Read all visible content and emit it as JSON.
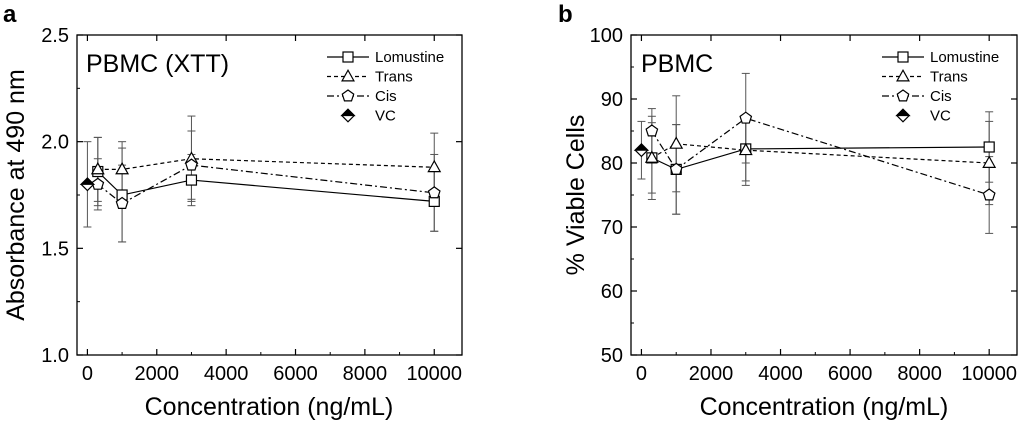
{
  "chart_data": [
    {
      "type": "line",
      "panel_label": "a",
      "title": "PBMC (XTT)",
      "xlabel": "Concentration (ng/mL)",
      "ylabel": "Absorbance at 490 nm",
      "xlim": [
        -300,
        10800
      ],
      "ylim": [
        1.0,
        2.5
      ],
      "xticks": [
        0,
        2000,
        4000,
        6000,
        8000,
        10000
      ],
      "xtick_labels": [
        "0",
        "2000",
        "4000",
        "6000",
        "8000",
        "10000"
      ],
      "yticks": [
        1.0,
        1.5,
        2.0,
        2.5
      ],
      "ytick_labels": [
        "1.0",
        "1.5",
        "2.0",
        "2.5"
      ],
      "legend_position": "top-right",
      "series": [
        {
          "name": "Lomustine",
          "line": "solid",
          "marker": "square",
          "x": [
            300,
            1000,
            3000,
            10000
          ],
          "y": [
            1.86,
            1.75,
            1.82,
            1.72
          ],
          "err": [
            0.16,
            0.22,
            0.12,
            0.14
          ]
        },
        {
          "name": "Trans",
          "line": "dashed",
          "marker": "triangle",
          "x": [
            300,
            1000,
            3000,
            10000
          ],
          "y": [
            1.87,
            1.87,
            1.92,
            1.88
          ],
          "err": [
            0.15,
            0.13,
            0.2,
            0.16
          ]
        },
        {
          "name": "Cis",
          "line": "dashdot",
          "marker": "pentagon",
          "x": [
            300,
            1000,
            3000,
            10000
          ],
          "y": [
            1.8,
            1.71,
            1.89,
            1.76
          ],
          "err": [
            0.12,
            0.18,
            0.16,
            0.18
          ]
        },
        {
          "name": "VC",
          "line": "none",
          "marker": "half-diamond",
          "x": [
            0
          ],
          "y": [
            1.8
          ],
          "err": [
            0.2
          ]
        }
      ]
    },
    {
      "type": "line",
      "panel_label": "b",
      "title": "PBMC",
      "xlabel": "Concentration (ng/mL)",
      "ylabel": "% Viable Cells",
      "xlim": [
        -300,
        10800
      ],
      "ylim": [
        50,
        100
      ],
      "xticks": [
        0,
        2000,
        4000,
        6000,
        8000,
        10000
      ],
      "xtick_labels": [
        "0",
        "2000",
        "4000",
        "6000",
        "8000",
        "10000"
      ],
      "yticks": [
        50,
        60,
        70,
        80,
        90,
        100
      ],
      "ytick_labels": [
        "50",
        "60",
        "70",
        "80",
        "90",
        "100"
      ],
      "legend_position": "top-right",
      "series": [
        {
          "name": "Lomustine",
          "line": "solid",
          "marker": "square",
          "x": [
            300,
            1000,
            3000,
            10000
          ],
          "y": [
            80.8,
            79.0,
            82.2,
            82.5
          ],
          "err": [
            5.5,
            7.0,
            5.0,
            5.5
          ]
        },
        {
          "name": "Trans",
          "line": "dashed",
          "marker": "triangle",
          "x": [
            300,
            1000,
            3000,
            10000
          ],
          "y": [
            80.8,
            83.0,
            82.0,
            80.0
          ],
          "err": [
            6.5,
            7.5,
            5.5,
            6.5
          ]
        },
        {
          "name": "Cis",
          "line": "dashdot",
          "marker": "pentagon",
          "x": [
            300,
            1000,
            3000,
            10000
          ],
          "y": [
            85.0,
            79.0,
            87.0,
            75.0
          ],
          "err": [
            3.5,
            7.0,
            7.0,
            6.0
          ]
        },
        {
          "name": "VC",
          "line": "none",
          "marker": "half-diamond",
          "x": [
            0
          ],
          "y": [
            82.0
          ],
          "err": [
            4.5
          ]
        }
      ]
    }
  ]
}
